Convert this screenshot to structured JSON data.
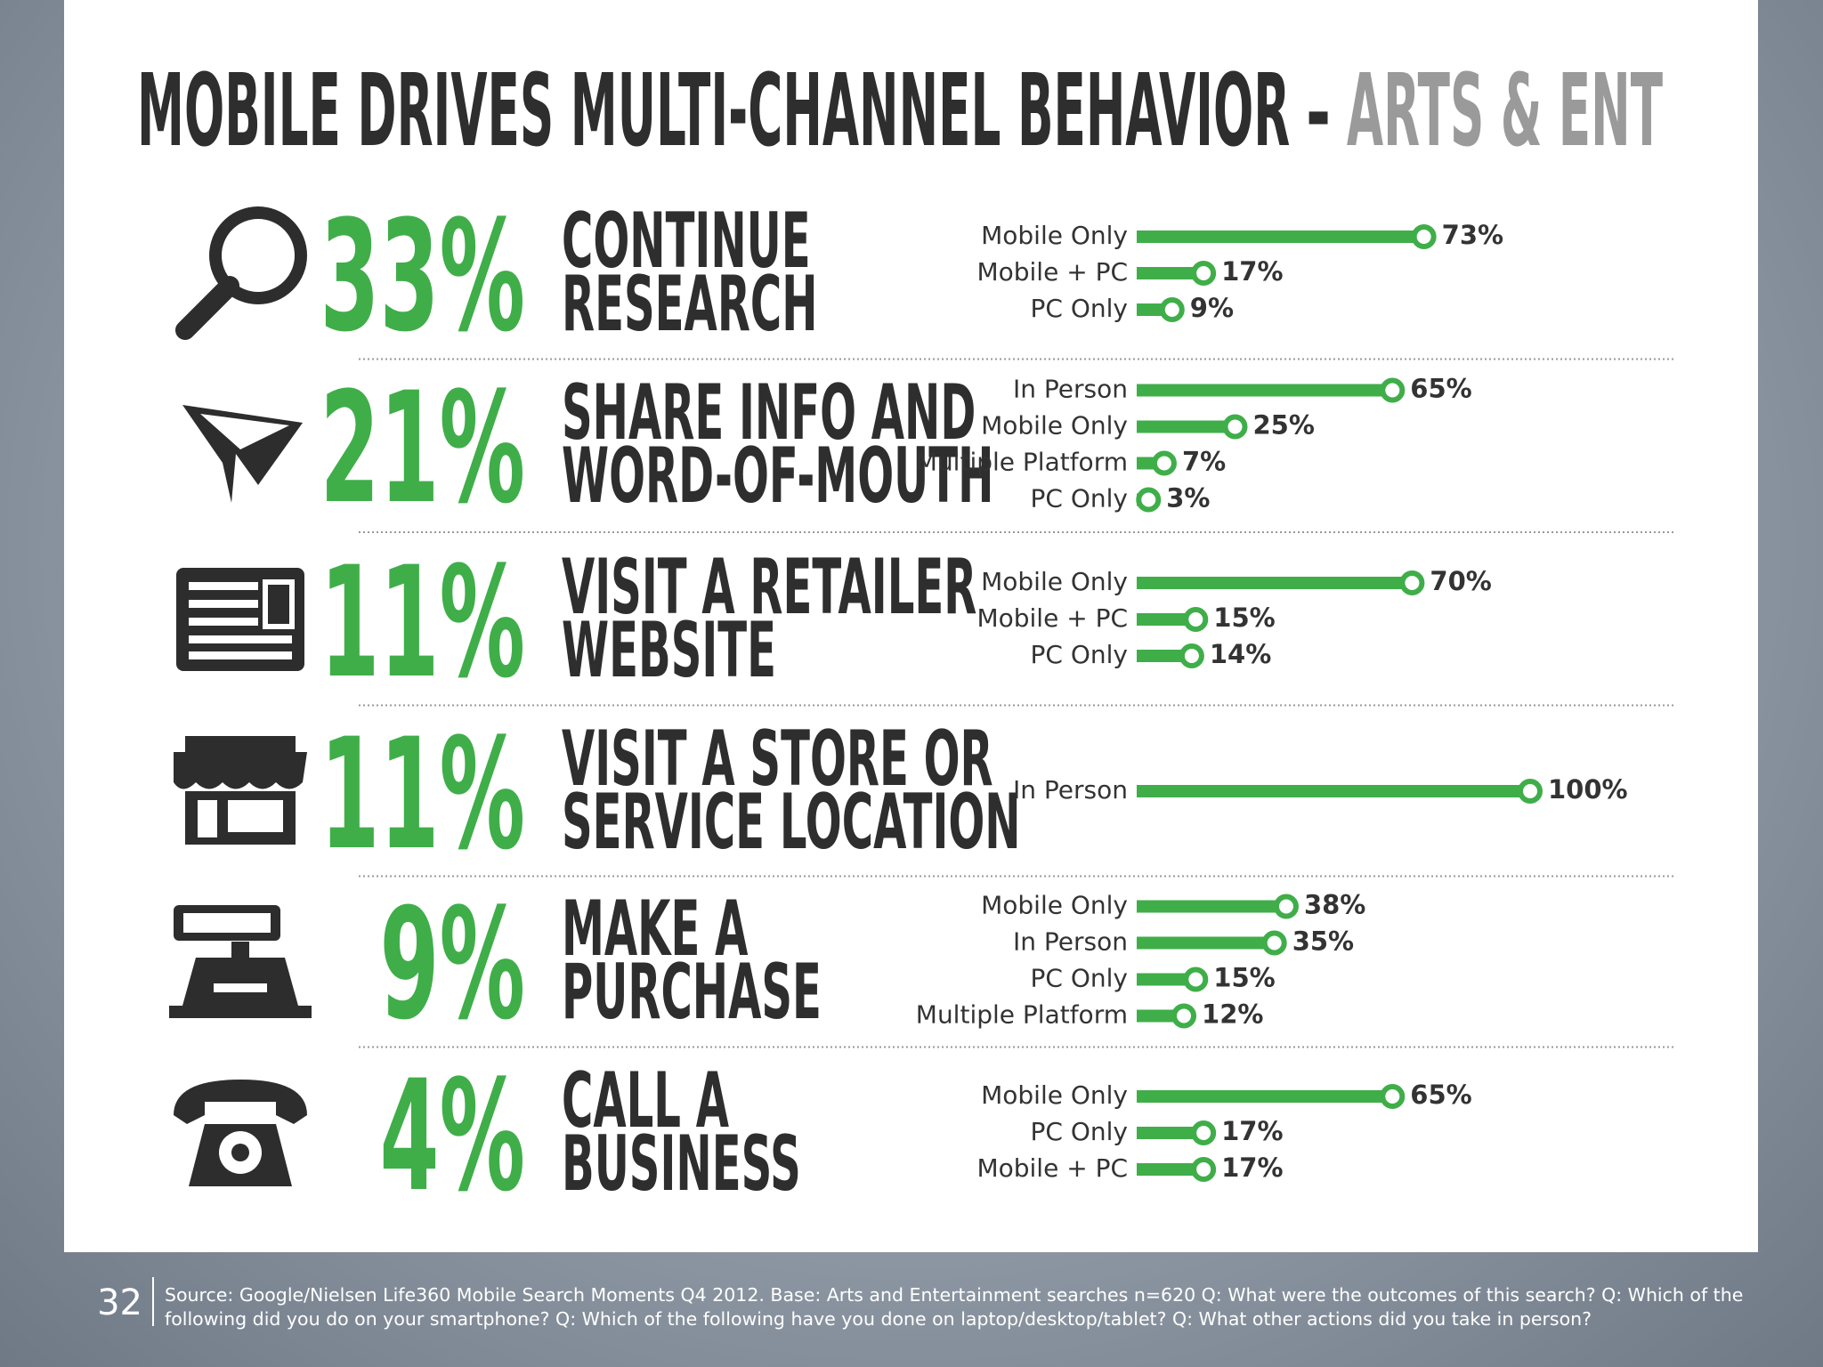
{
  "title": "MOBILE DRIVES MULTI-CHANNEL BEHAVIOR – ",
  "title_accent": "ARTS & ENT",
  "sections": [
    {
      "percent": "33%",
      "label": [
        "CONTINUE",
        "RESEARCH"
      ],
      "bars": [
        {
          "name": "Mobile Only",
          "value": 73,
          "value_label": "73%"
        },
        {
          "name": "Mobile + PC",
          "value": 17,
          "value_label": "17%"
        },
        {
          "name": "PC Only",
          "value": 9,
          "value_label": "9%"
        }
      ]
    },
    {
      "percent": "21%",
      "label": [
        "SHARE INFO AND",
        "WORD-OF-MOUTH"
      ],
      "bars": [
        {
          "name": "In Person",
          "value": 65,
          "value_label": "65%"
        },
        {
          "name": "Mobile Only",
          "value": 25,
          "value_label": "25%"
        },
        {
          "name": "Multiple Platform",
          "value": 7,
          "value_label": "7%"
        },
        {
          "name": "PC Only",
          "value": 3,
          "value_label": "3%"
        }
      ]
    },
    {
      "percent": "11%",
      "label": [
        "VISIT A RETAILER",
        "WEBSITE"
      ],
      "bars": [
        {
          "name": "Mobile Only",
          "value": 70,
          "value_label": "70%"
        },
        {
          "name": "Mobile + PC",
          "value": 15,
          "value_label": "15%"
        },
        {
          "name": "PC Only",
          "value": 14,
          "value_label": "14%"
        }
      ]
    },
    {
      "percent": "11%",
      "label": [
        "VISIT A STORE OR",
        "SERVICE LOCATION"
      ],
      "bars": [
        {
          "name": "In Person",
          "value": 100,
          "value_label": "100%"
        }
      ]
    },
    {
      "percent": "9%",
      "label": [
        "MAKE A",
        "PURCHASE"
      ],
      "bars": [
        {
          "name": "Mobile Only",
          "value": 38,
          "value_label": "38%"
        },
        {
          "name": "In Person",
          "value": 35,
          "value_label": "35%"
        },
        {
          "name": "PC Only",
          "value": 15,
          "value_label": "15%"
        },
        {
          "name": "Multiple Platform",
          "value": 12,
          "value_label": "12%"
        }
      ]
    },
    {
      "percent": "4%",
      "label": [
        "CALL A",
        "BUSINESS"
      ],
      "bars": [
        {
          "name": "Mobile Only",
          "value": 65,
          "value_label": "65%"
        },
        {
          "name": "PC Only",
          "value": 17,
          "value_label": "17%"
        },
        {
          "name": "Mobile + PC",
          "value": 17,
          "value_label": "17%"
        }
      ]
    }
  ],
  "page_number": "32",
  "source": [
    "Source: Google/Nielsen Life360 Mobile Search Moments Q4 2012. Base: Arts and Entertainment searches n=620 Q: What were the outcomes of this search? Q: Which of the",
    "following did you do on your smartphone? Q: Which of the following have you done on laptop/desktop/tablet? Q: What other actions did you take in person?"
  ]
}
